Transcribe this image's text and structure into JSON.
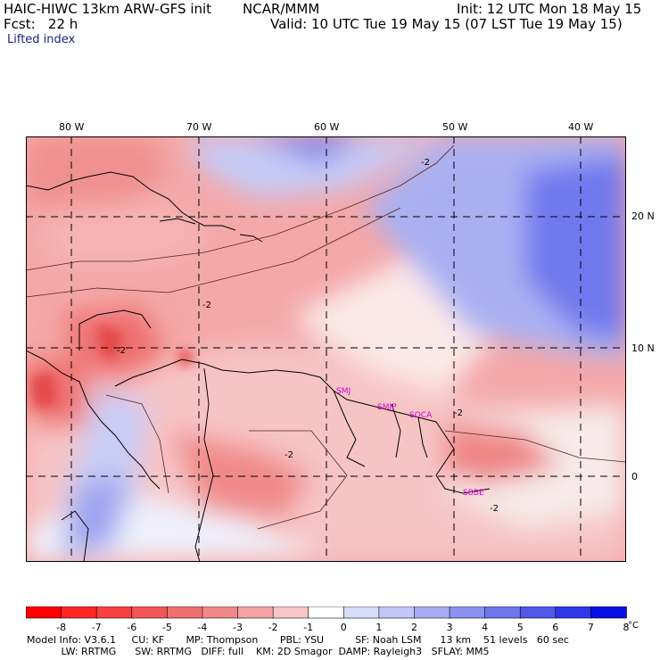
{
  "header": {
    "model_title": "HAIC-HIWC 13km ARW-GFS init",
    "org": "NCAR/MMM",
    "init": "Init: 12 UTC Mon 18 May 15",
    "fcst": "Fcst:   22 h",
    "valid": "Valid: 10 UTC Tue 19 May 15 (07 LST Tue 19 May 15)",
    "field": "Lifted index"
  },
  "axes": {
    "lon_labels": [
      "80 W",
      "70 W",
      "60 W",
      "50 W",
      "40 W"
    ],
    "lat_labels": [
      "20 N",
      "10 N",
      "0"
    ]
  },
  "stations": [
    "SMJ",
    "SMJP",
    "SOCA",
    "SBBE"
  ],
  "contour_labels": [
    "-2",
    "-2",
    "-2",
    "-2",
    "-2",
    "-2"
  ],
  "colorbar": {
    "ticks": [
      "-8",
      "-7",
      "-6",
      "-5",
      "-4",
      "-3",
      "-2",
      "-1",
      "0",
      "1",
      "2",
      "3",
      "4",
      "5",
      "6",
      "7",
      "8"
    ],
    "unit": "°C",
    "colors": [
      "#ff0000",
      "#ff2626",
      "#f84040",
      "#f25656",
      "#ef6f6f",
      "#f08888",
      "#f4a3a3",
      "#f8c6c6",
      "#ffffff",
      "#d9dcf8",
      "#c2c6f6",
      "#a7adf4",
      "#8b92f0",
      "#6e76ec",
      "#5058ea",
      "#2e38ea",
      "#0810e6"
    ]
  },
  "model_info": {
    "line1": "Model Info: V3.6.1     CU: KF       MP: Thompson       PBL: YSU          SF: Noah LSM      13 km    51 levels   60 sec",
    "line2": "           LW: RRTMG      SW: RRTMG   DIFF: full    KM: 2D Smagor  DAMP: Rayleigh3   SFLAY: MM5"
  }
}
